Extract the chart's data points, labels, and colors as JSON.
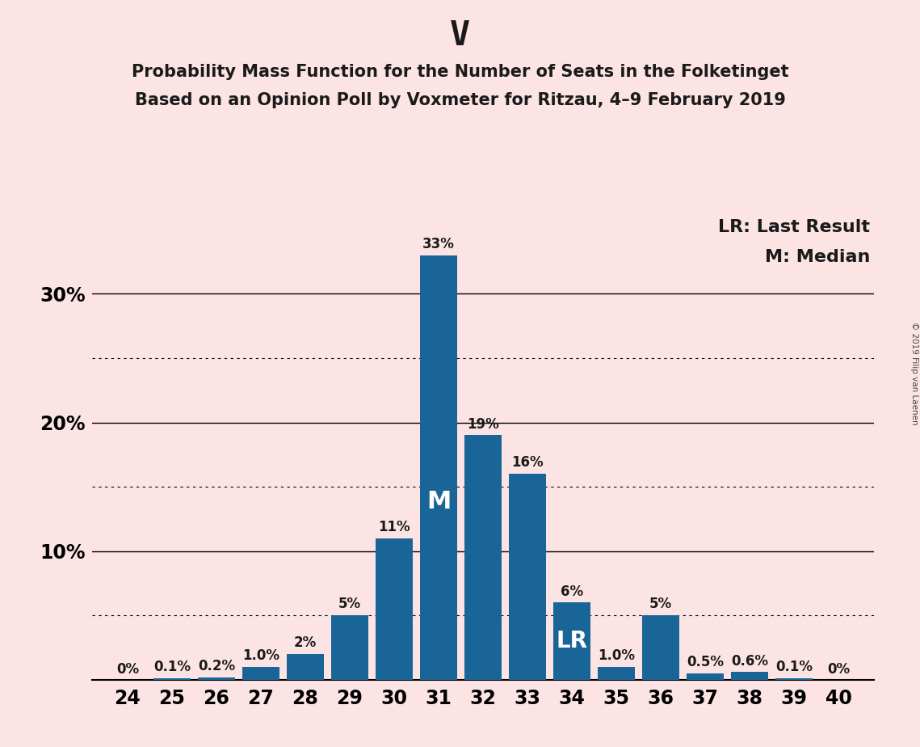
{
  "title": "V",
  "subtitle1": "Probability Mass Function for the Number of Seats in the Folketinget",
  "subtitle2": "Based on an Opinion Poll by Voxmeter for Ritzau, 4–9 February 2019",
  "copyright": "© 2019 Filip van Laenen",
  "legend_lr": "LR: Last Result",
  "legend_m": "M: Median",
  "categories": [
    24,
    25,
    26,
    27,
    28,
    29,
    30,
    31,
    32,
    33,
    34,
    35,
    36,
    37,
    38,
    39,
    40
  ],
  "values": [
    0.0,
    0.1,
    0.2,
    1.0,
    2.0,
    5.0,
    11.0,
    33.0,
    19.0,
    16.0,
    6.0,
    1.0,
    5.0,
    0.5,
    0.6,
    0.1,
    0.0
  ],
  "labels": [
    "0%",
    "0.1%",
    "0.2%",
    "1.0%",
    "2%",
    "5%",
    "11%",
    "33%",
    "19%",
    "16%",
    "6%",
    "1.0%",
    "5%",
    "0.5%",
    "0.6%",
    "0.1%",
    "0%"
  ],
  "bar_color": "#1a6598",
  "background_color": "#fce4e4",
  "median_seat": 31,
  "lr_seat": 34,
  "ylim": [
    0,
    36
  ],
  "solid_lines": [
    10,
    20,
    30
  ],
  "dotted_lines": [
    5,
    15,
    25
  ],
  "ytick_positions": [
    10,
    20,
    30
  ],
  "ytick_labels": [
    "10%",
    "20%",
    "30%"
  ],
  "title_fontsize": 30,
  "subtitle_fontsize": 15,
  "label_fontsize": 12,
  "tick_fontsize": 17,
  "legend_fontsize": 16,
  "median_label_fontsize": 22,
  "lr_label_fontsize": 20
}
